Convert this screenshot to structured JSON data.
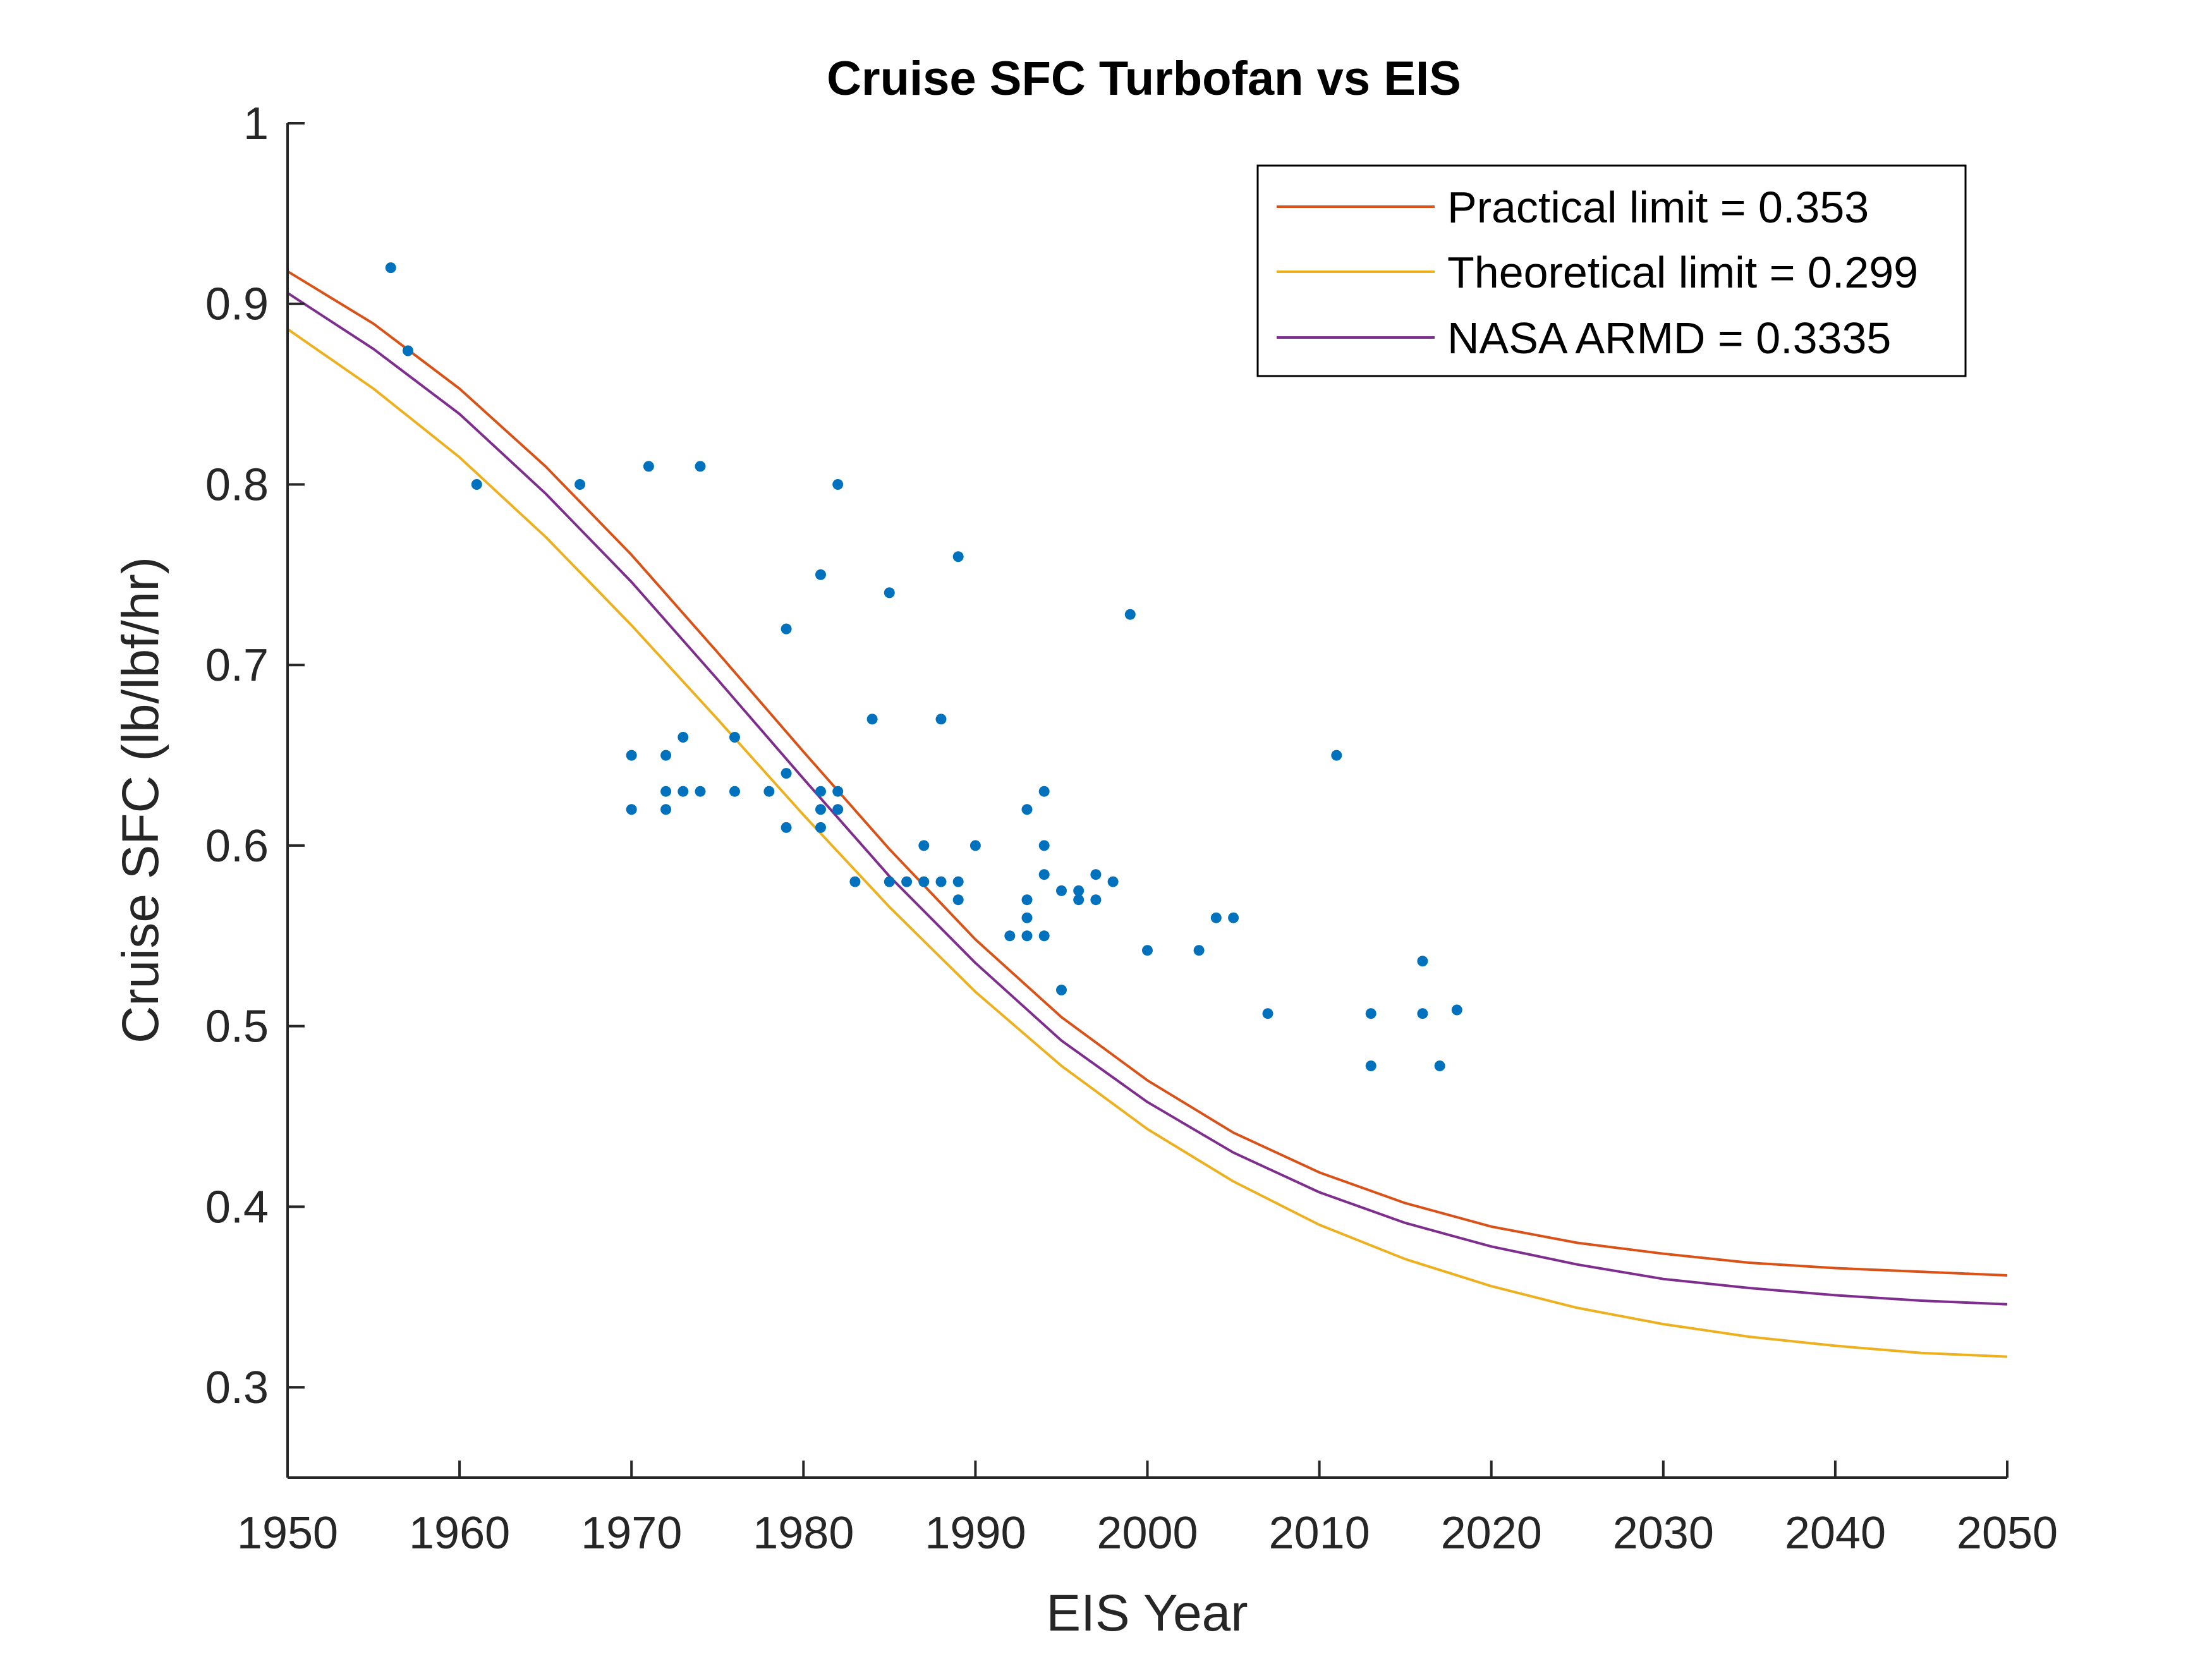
{
  "chart_data": {
    "type": "scatter",
    "title": "Cruise SFC Turbofan vs EIS",
    "xlabel": "EIS Year",
    "ylabel": "Cruise SFC (lb/lbf/hr)",
    "xlim": [
      1950,
      2050
    ],
    "ylim": [
      0.25,
      1.0
    ],
    "xticks": [
      "1950",
      "1960",
      "1970",
      "1980",
      "1990",
      "2000",
      "2010",
      "2020",
      "2030",
      "2040",
      "2050"
    ],
    "yticks": [
      "0.3",
      "0.4",
      "0.5",
      "0.6",
      "0.7",
      "0.8",
      "0.9",
      "1"
    ],
    "grid": false,
    "legend_position": "top-right",
    "points_color": "#0072BD",
    "points": [
      [
        1956,
        0.92
      ],
      [
        1957,
        0.874
      ],
      [
        1961,
        0.8
      ],
      [
        1967,
        0.8
      ],
      [
        1970,
        0.65
      ],
      [
        1970,
        0.62
      ],
      [
        1971,
        0.81
      ],
      [
        1972,
        0.65
      ],
      [
        1972,
        0.63
      ],
      [
        1972,
        0.62
      ],
      [
        1973,
        0.66
      ],
      [
        1973,
        0.63
      ],
      [
        1974,
        0.81
      ],
      [
        1974,
        0.63
      ],
      [
        1976,
        0.66
      ],
      [
        1976,
        0.63
      ],
      [
        1978,
        0.63
      ],
      [
        1979,
        0.72
      ],
      [
        1979,
        0.64
      ],
      [
        1979,
        0.61
      ],
      [
        1981,
        0.75
      ],
      [
        1981,
        0.63
      ],
      [
        1981,
        0.62
      ],
      [
        1981,
        0.61
      ],
      [
        1982,
        0.8
      ],
      [
        1982,
        0.63
      ],
      [
        1982,
        0.62
      ],
      [
        1983,
        0.58
      ],
      [
        1984,
        0.67
      ],
      [
        1985,
        0.74
      ],
      [
        1985,
        0.58
      ],
      [
        1986,
        0.58
      ],
      [
        1987,
        0.6
      ],
      [
        1987,
        0.58
      ],
      [
        1988,
        0.67
      ],
      [
        1988,
        0.58
      ],
      [
        1989,
        0.76
      ],
      [
        1989,
        0.58
      ],
      [
        1989,
        0.57
      ],
      [
        1990,
        0.6
      ],
      [
        1992,
        0.55
      ],
      [
        1993,
        0.62
      ],
      [
        1993,
        0.57
      ],
      [
        1993,
        0.56
      ],
      [
        1993,
        0.55
      ],
      [
        1994,
        0.63
      ],
      [
        1994,
        0.6
      ],
      [
        1994,
        0.584
      ],
      [
        1994,
        0.55
      ],
      [
        1995,
        0.575
      ],
      [
        1995,
        0.52
      ],
      [
        1996,
        0.575
      ],
      [
        1996,
        0.57
      ],
      [
        1997,
        0.584
      ],
      [
        1997,
        0.57
      ],
      [
        1998,
        0.58
      ],
      [
        1999,
        0.728
      ],
      [
        2000,
        0.542
      ],
      [
        2003,
        0.542
      ],
      [
        2004,
        0.56
      ],
      [
        2005,
        0.56
      ],
      [
        2007,
        0.507
      ],
      [
        2011,
        0.65
      ],
      [
        2013,
        0.507
      ],
      [
        2013,
        0.478
      ],
      [
        2016,
        0.536
      ],
      [
        2016,
        0.507
      ],
      [
        2017,
        0.478
      ],
      [
        2018,
        0.509
      ]
    ],
    "series": [
      {
        "name": "Practical limit = 0.353",
        "color": "#D95319",
        "x": [
          1950,
          1955,
          1960,
          1965,
          1970,
          1975,
          1980,
          1985,
          1990,
          1995,
          2000,
          2005,
          2010,
          2015,
          2020,
          2025,
          2030,
          2035,
          2040,
          2045,
          2050
        ],
        "y": [
          0.918,
          0.889,
          0.853,
          0.81,
          0.761,
          0.707,
          0.652,
          0.598,
          0.548,
          0.505,
          0.47,
          0.441,
          0.419,
          0.402,
          0.389,
          0.38,
          0.374,
          0.369,
          0.366,
          0.364,
          0.362
        ]
      },
      {
        "name": "Theoretical limit = 0.299",
        "color": "#EDB120",
        "x": [
          1950,
          1955,
          1960,
          1965,
          1970,
          1975,
          1980,
          1985,
          1990,
          1995,
          2000,
          2005,
          2010,
          2015,
          2020,
          2025,
          2030,
          2035,
          2040,
          2045,
          2050
        ],
        "y": [
          0.886,
          0.853,
          0.815,
          0.771,
          0.722,
          0.67,
          0.617,
          0.566,
          0.519,
          0.478,
          0.443,
          0.414,
          0.39,
          0.371,
          0.356,
          0.344,
          0.335,
          0.328,
          0.323,
          0.319,
          0.317
        ]
      },
      {
        "name": "NASA ARMD = 0.3335",
        "color": "#7E2F8E",
        "x": [
          1950,
          1955,
          1960,
          1965,
          1970,
          1975,
          1980,
          1985,
          1990,
          1995,
          2000,
          2005,
          2010,
          2015,
          2020,
          2025,
          2030,
          2035,
          2040,
          2045,
          2050
        ],
        "y": [
          0.906,
          0.875,
          0.839,
          0.795,
          0.746,
          0.692,
          0.637,
          0.583,
          0.535,
          0.492,
          0.458,
          0.43,
          0.408,
          0.391,
          0.378,
          0.368,
          0.36,
          0.355,
          0.351,
          0.348,
          0.346
        ]
      }
    ]
  }
}
